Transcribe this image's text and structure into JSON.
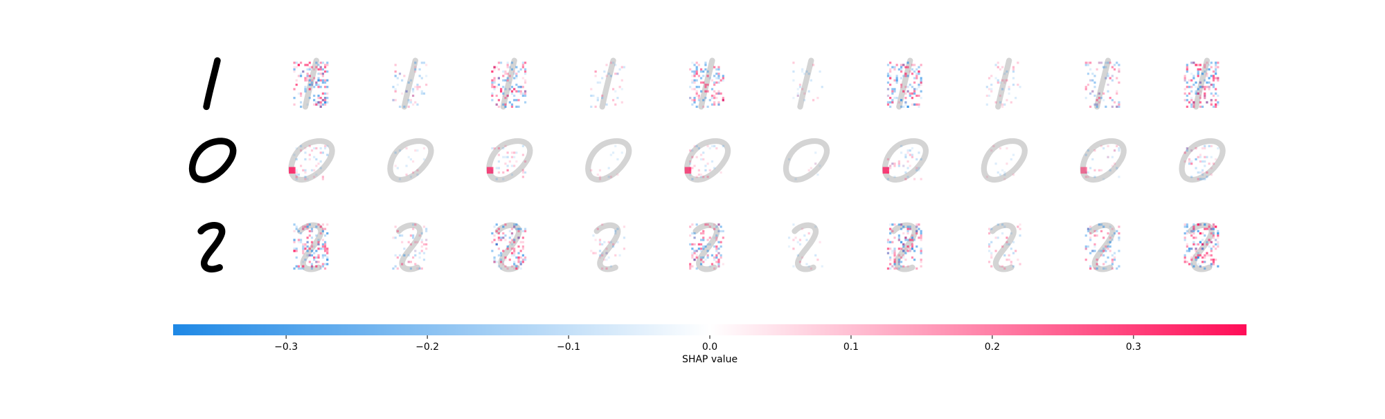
{
  "chart_data": {
    "type": "shap-image",
    "xlabel": "SHAP value",
    "xlim": [
      -0.38,
      0.38
    ],
    "xticks": [
      {
        "value": -0.3,
        "label": "−0.3"
      },
      {
        "value": -0.2,
        "label": "−0.2"
      },
      {
        "value": -0.1,
        "label": "−0.1"
      },
      {
        "value": 0,
        "label": "0.0"
      },
      0.1,
      0.2,
      0.3
    ],
    "colors": [
      "#1E88E5",
      "#ffffff",
      "#FF0D57"
    ]
  }
}
